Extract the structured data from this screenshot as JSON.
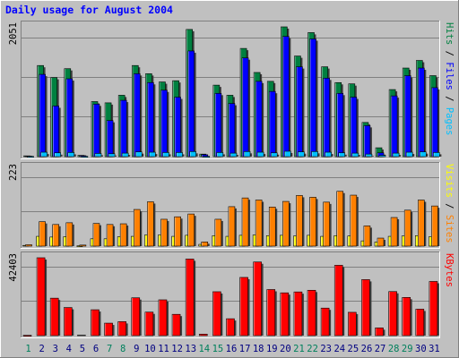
{
  "colors": {
    "background": "#c0c0c0",
    "panel": "#c0c0c0",
    "gridline": "#808080",
    "title_text": "#0000ff",
    "hits": "#008040",
    "files": "#0000ff",
    "pages": "#00c0ff",
    "visits": "#ffff00",
    "sites": "#ff8000",
    "kbytes": "#ff0000",
    "weekend_day": "#00805c",
    "weekday_day": "#000080"
  },
  "chart_data": {
    "title": "Daily usage for August 2004",
    "type": "bar",
    "categories": [
      "1",
      "2",
      "3",
      "4",
      "5",
      "6",
      "7",
      "8",
      "9",
      "10",
      "11",
      "12",
      "13",
      "14",
      "15",
      "16",
      "17",
      "18",
      "19",
      "20",
      "21",
      "22",
      "23",
      "24",
      "25",
      "26",
      "27",
      "28",
      "29",
      "30",
      "31"
    ],
    "weekend_days": [
      "1",
      "7",
      "8",
      "14",
      "15",
      "21",
      "22",
      "28",
      "29"
    ],
    "panels": [
      {
        "name": "hits-files-pages",
        "ymax_label": "2051",
        "ymax": 2051,
        "series": [
          {
            "name": "Hits",
            "values": [
              12,
              1440,
              1250,
              1390,
              20,
              870,
              850,
              970,
              1440,
              1310,
              1180,
              1200,
              2010,
              40,
              1130,
              970,
              1710,
              1330,
              1190,
              2051,
              1590,
              1960,
              1420,
              1170,
              1150,
              540,
              140,
              1060,
              1400,
              1520,
              1280
            ]
          },
          {
            "name": "Files",
            "values": [
              8,
              1300,
              800,
              1230,
              15,
              830,
              570,
              890,
              1310,
              1170,
              1050,
              940,
              1670,
              30,
              1000,
              840,
              1560,
              1190,
              1030,
              1900,
              1420,
              1860,
              1240,
              1000,
              940,
              490,
              60,
              960,
              1280,
              1400,
              1090
            ]
          },
          {
            "name": "Pages",
            "values": [
              5,
              70,
              60,
              65,
              5,
              50,
              45,
              55,
              75,
              70,
              65,
              65,
              80,
              5,
              65,
              55,
              80,
              70,
              60,
              85,
              75,
              80,
              70,
              60,
              55,
              40,
              20,
              55,
              70,
              75,
              65
            ]
          }
        ],
        "right_label": [
          "Pages",
          "Files",
          "Hits"
        ]
      },
      {
        "name": "visits-sites",
        "ymax_label": "223",
        "ymax": 223,
        "series": [
          {
            "name": "Visits",
            "values": [
              2,
              28,
              26,
              27,
              1,
              21,
              21,
              27,
              28,
              32,
              32,
              28,
              31,
              5,
              30,
              28,
              31,
              32,
              30,
              31,
              29,
              31,
              28,
              30,
              29,
              15,
              12,
              28,
              29,
              30,
              27
            ]
          },
          {
            "name": "Sites",
            "values": [
              4,
              70,
              62,
              67,
              3,
              65,
              62,
              64,
              105,
              127,
              77,
              84,
              92,
              12,
              77,
              113,
              138,
              132,
              112,
              128,
              145,
              140,
              126,
              157,
              146,
              58,
              23,
              82,
              103,
              132,
              115
            ]
          }
        ],
        "right_label": [
          "Sites",
          "Visits"
        ]
      },
      {
        "name": "kbytes",
        "ymax_label": "42403",
        "ymax": 42403,
        "series": [
          {
            "name": "KBytes",
            "values": [
              200,
              42403,
              20400,
              15300,
              250,
              14100,
              6800,
              7600,
              20600,
              12800,
              19500,
              11600,
              41700,
              800,
              23900,
              9200,
              31700,
              40100,
              25100,
              23300,
              23800,
              24700,
              15000,
              38300,
              12700,
              30500,
              4200,
              24000,
              20800,
              14400,
              29500
            ]
          }
        ],
        "right_label": [
          "KBytes"
        ]
      }
    ]
  }
}
